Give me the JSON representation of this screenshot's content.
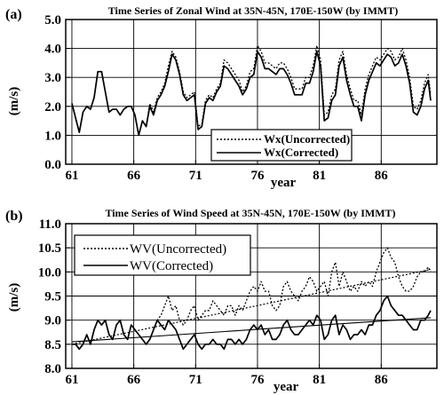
{
  "figure": {
    "panel_a_label": "(a)",
    "panel_b_label": "(b)"
  },
  "chart_data": [
    {
      "type": "line",
      "title": "Time Series of Zonal Wind at 35N-45N, 170E-150W (by IMMT)",
      "xlabel": "year",
      "ylabel": "(m/s)",
      "xlim": [
        60.5,
        90.5
      ],
      "ylim": [
        0.0,
        5.0
      ],
      "x_ticks": [
        61,
        66,
        71,
        76,
        81,
        86
      ],
      "y_ticks": [
        0.0,
        1.0,
        2.0,
        3.0,
        4.0,
        5.0
      ],
      "y_tick_labels": [
        "0.0",
        "1.0",
        "2.0",
        "3.0",
        "4.0",
        "5.0"
      ],
      "grid": true,
      "legend_position": "bottom-right",
      "series": [
        {
          "name": "Wx(Uncorrected)",
          "style": "dotted",
          "x": [
            61.0,
            61.3,
            61.6,
            61.9,
            62.2,
            62.5,
            62.8,
            63.1,
            63.4,
            63.7,
            64.0,
            64.3,
            64.6,
            64.9,
            65.2,
            65.5,
            65.8,
            66.1,
            66.4,
            66.7,
            67.0,
            67.3,
            67.6,
            67.9,
            68.2,
            68.5,
            68.8,
            69.1,
            69.4,
            69.7,
            70.0,
            70.3,
            70.6,
            70.9,
            71.2,
            71.5,
            71.8,
            72.1,
            72.4,
            72.7,
            73.0,
            73.3,
            73.6,
            73.9,
            74.2,
            74.5,
            74.8,
            75.1,
            75.4,
            75.7,
            76.0,
            76.3,
            76.6,
            76.9,
            77.2,
            77.5,
            77.8,
            78.1,
            78.4,
            78.7,
            79.0,
            79.3,
            79.6,
            79.9,
            80.2,
            80.5,
            80.8,
            81.1,
            81.4,
            81.7,
            82.0,
            82.3,
            82.6,
            82.9,
            83.2,
            83.5,
            83.8,
            84.1,
            84.4,
            84.7,
            85.0,
            85.3,
            85.6,
            85.9,
            86.2,
            86.5,
            86.8,
            87.1,
            87.4,
            87.7,
            88.0,
            88.3,
            88.6,
            88.9,
            89.2,
            89.5,
            89.8,
            90.0
          ],
          "y": [
            2.1,
            1.6,
            1.1,
            1.8,
            2.0,
            1.9,
            2.3,
            3.2,
            3.2,
            2.5,
            1.8,
            1.9,
            1.9,
            1.7,
            1.9,
            2.0,
            2.0,
            1.7,
            1.0,
            1.5,
            1.3,
            2.1,
            1.8,
            2.3,
            2.5,
            2.8,
            3.4,
            3.9,
            3.7,
            3.2,
            2.5,
            2.3,
            2.4,
            2.5,
            1.3,
            1.4,
            2.2,
            2.4,
            2.3,
            2.6,
            2.8,
            3.6,
            3.5,
            3.3,
            3.1,
            2.9,
            2.5,
            2.7,
            3.2,
            3.3,
            4.1,
            3.9,
            3.5,
            3.5,
            3.4,
            3.3,
            3.5,
            3.5,
            3.3,
            3.0,
            2.6,
            2.6,
            2.6,
            3.0,
            3.0,
            3.4,
            4.1,
            3.6,
            1.7,
            1.8,
            2.4,
            2.6,
            3.6,
            3.9,
            3.1,
            2.6,
            2.2,
            2.2,
            1.7,
            2.6,
            3.1,
            3.4,
            3.7,
            3.6,
            3.8,
            4.0,
            3.9,
            3.6,
            3.7,
            4.0,
            3.6,
            3.0,
            2.0,
            1.9,
            2.2,
            2.8,
            3.1,
            2.4
          ]
        },
        {
          "name": "Wx(Corrected)",
          "style": "solid",
          "x": [
            61.0,
            61.3,
            61.6,
            61.9,
            62.2,
            62.5,
            62.8,
            63.1,
            63.4,
            63.7,
            64.0,
            64.3,
            64.6,
            64.9,
            65.2,
            65.5,
            65.8,
            66.1,
            66.4,
            66.7,
            67.0,
            67.3,
            67.6,
            67.9,
            68.2,
            68.5,
            68.8,
            69.1,
            69.4,
            69.7,
            70.0,
            70.3,
            70.6,
            70.9,
            71.2,
            71.5,
            71.8,
            72.1,
            72.4,
            72.7,
            73.0,
            73.3,
            73.6,
            73.9,
            74.2,
            74.5,
            74.8,
            75.1,
            75.4,
            75.7,
            76.0,
            76.3,
            76.6,
            76.9,
            77.2,
            77.5,
            77.8,
            78.1,
            78.4,
            78.7,
            79.0,
            79.3,
            79.6,
            79.9,
            80.2,
            80.5,
            80.8,
            81.1,
            81.4,
            81.7,
            82.0,
            82.3,
            82.6,
            82.9,
            83.2,
            83.5,
            83.8,
            84.1,
            84.4,
            84.7,
            85.0,
            85.3,
            85.6,
            85.9,
            86.2,
            86.5,
            86.8,
            87.1,
            87.4,
            87.7,
            88.0,
            88.3,
            88.6,
            88.9,
            89.2,
            89.5,
            89.8,
            90.0
          ],
          "y": [
            2.1,
            1.6,
            1.1,
            1.8,
            2.0,
            1.9,
            2.3,
            3.2,
            3.2,
            2.5,
            1.8,
            1.9,
            1.9,
            1.7,
            1.9,
            2.0,
            2.0,
            1.7,
            1.0,
            1.5,
            1.3,
            2.0,
            1.7,
            2.2,
            2.4,
            2.7,
            3.2,
            3.8,
            3.6,
            3.1,
            2.4,
            2.2,
            2.3,
            2.4,
            1.2,
            1.3,
            2.1,
            2.3,
            2.2,
            2.5,
            2.7,
            3.4,
            3.3,
            3.1,
            2.9,
            2.7,
            2.4,
            2.6,
            3.0,
            3.1,
            3.9,
            3.7,
            3.3,
            3.3,
            3.2,
            3.1,
            3.3,
            3.3,
            3.1,
            2.8,
            2.4,
            2.4,
            2.4,
            2.8,
            2.8,
            3.2,
            3.9,
            3.4,
            1.5,
            1.6,
            2.2,
            2.4,
            3.4,
            3.7,
            2.9,
            2.4,
            2.0,
            2.0,
            1.5,
            2.4,
            2.9,
            3.2,
            3.5,
            3.4,
            3.6,
            3.8,
            3.7,
            3.4,
            3.5,
            3.8,
            3.4,
            2.8,
            1.8,
            1.7,
            2.0,
            2.6,
            2.9,
            2.2
          ]
        }
      ]
    },
    {
      "type": "line",
      "title": "Time Series of Wind Speed at 35N-45N, 170E-150W (by IMMT)",
      "xlabel": "year",
      "ylabel": "(m/s)",
      "xlim": [
        60.5,
        90.5
      ],
      "ylim": [
        8.0,
        11.0
      ],
      "x_ticks": [
        61,
        66,
        71,
        76,
        81,
        86
      ],
      "y_ticks": [
        8.0,
        8.5,
        9.0,
        9.5,
        10.0,
        10.5,
        11.0
      ],
      "y_tick_labels": [
        "8.0",
        "8.5",
        "9.0",
        "9.5",
        "10.0",
        "10.5",
        "11.0"
      ],
      "grid": true,
      "legend_position": "top-left",
      "series": [
        {
          "name": "WV(Uncorrected)",
          "style": "dotted",
          "x": [
            61.0,
            61.3,
            61.6,
            61.9,
            62.2,
            62.5,
            62.8,
            63.1,
            63.4,
            63.7,
            64.0,
            64.3,
            64.6,
            64.9,
            65.2,
            65.5,
            65.8,
            66.1,
            66.4,
            66.7,
            67.0,
            67.3,
            67.6,
            67.9,
            68.2,
            68.5,
            68.8,
            69.1,
            69.4,
            69.7,
            70.0,
            70.3,
            70.6,
            70.9,
            71.2,
            71.5,
            71.8,
            72.1,
            72.4,
            72.7,
            73.0,
            73.3,
            73.6,
            73.9,
            74.2,
            74.5,
            74.8,
            75.1,
            75.4,
            75.7,
            76.0,
            76.3,
            76.6,
            76.9,
            77.2,
            77.5,
            77.8,
            78.1,
            78.4,
            78.7,
            79.0,
            79.3,
            79.6,
            79.9,
            80.2,
            80.5,
            80.8,
            81.1,
            81.4,
            81.7,
            82.0,
            82.3,
            82.6,
            82.9,
            83.2,
            83.5,
            83.8,
            84.1,
            84.4,
            84.7,
            85.0,
            85.3,
            85.6,
            85.9,
            86.2,
            86.5,
            86.8,
            87.1,
            87.4,
            87.7,
            88.0,
            88.3,
            88.6,
            88.9,
            89.2,
            89.5,
            89.8,
            90.0
          ],
          "y": [
            8.5,
            8.5,
            8.4,
            8.5,
            8.7,
            8.5,
            8.8,
            9.0,
            8.9,
            9.0,
            8.7,
            8.6,
            8.9,
            9.0,
            8.7,
            8.6,
            8.9,
            8.8,
            8.7,
            8.6,
            8.5,
            8.6,
            8.8,
            9.0,
            9.1,
            9.3,
            9.5,
            9.2,
            9.3,
            9.0,
            8.9,
            9.0,
            9.2,
            9.3,
            9.0,
            9.1,
            9.2,
            9.2,
            9.4,
            9.3,
            9.2,
            9.1,
            9.3,
            9.3,
            9.1,
            9.3,
            9.2,
            9.4,
            9.6,
            9.7,
            9.6,
            9.8,
            9.6,
            9.6,
            9.3,
            9.2,
            9.3,
            9.7,
            9.8,
            9.6,
            9.5,
            9.4,
            9.6,
            9.7,
            9.9,
            9.8,
            9.6,
            9.7,
            9.8,
            9.5,
            10.0,
            10.2,
            9.7,
            10.0,
            9.8,
            9.6,
            9.7,
            9.6,
            9.8,
            9.7,
            9.8,
            9.7,
            10.0,
            10.2,
            10.4,
            10.5,
            10.3,
            10.2,
            9.9,
            9.7,
            9.6,
            9.6,
            9.7,
            9.9,
            10.0,
            10.0,
            10.1,
            10.0
          ]
        },
        {
          "name": "WV(Corrected)",
          "style": "solid",
          "x": [
            61.0,
            61.3,
            61.6,
            61.9,
            62.2,
            62.5,
            62.8,
            63.1,
            63.4,
            63.7,
            64.0,
            64.3,
            64.6,
            64.9,
            65.2,
            65.5,
            65.8,
            66.1,
            66.4,
            66.7,
            67.0,
            67.3,
            67.6,
            67.9,
            68.2,
            68.5,
            68.8,
            69.1,
            69.4,
            69.7,
            70.0,
            70.3,
            70.6,
            70.9,
            71.2,
            71.5,
            71.8,
            72.1,
            72.4,
            72.7,
            73.0,
            73.3,
            73.6,
            73.9,
            74.2,
            74.5,
            74.8,
            75.1,
            75.4,
            75.7,
            76.0,
            76.3,
            76.6,
            76.9,
            77.2,
            77.5,
            77.8,
            78.1,
            78.4,
            78.7,
            79.0,
            79.3,
            79.6,
            79.9,
            80.2,
            80.5,
            80.8,
            81.1,
            81.4,
            81.7,
            82.0,
            82.3,
            82.6,
            82.9,
            83.2,
            83.5,
            83.8,
            84.1,
            84.4,
            84.7,
            85.0,
            85.3,
            85.6,
            85.9,
            86.2,
            86.5,
            86.8,
            87.1,
            87.4,
            87.7,
            88.0,
            88.3,
            88.6,
            88.9,
            89.2,
            89.5,
            89.8,
            90.0
          ],
          "y": [
            8.5,
            8.5,
            8.4,
            8.5,
            8.7,
            8.5,
            8.8,
            9.0,
            8.9,
            9.0,
            8.7,
            8.6,
            8.9,
            9.0,
            8.7,
            8.6,
            8.9,
            8.8,
            8.7,
            8.6,
            8.5,
            8.6,
            8.8,
            9.0,
            8.9,
            8.8,
            9.0,
            8.9,
            8.8,
            8.6,
            8.4,
            8.5,
            8.6,
            8.7,
            8.5,
            8.4,
            8.5,
            8.5,
            8.6,
            8.5,
            8.5,
            8.4,
            8.6,
            8.6,
            8.5,
            8.6,
            8.5,
            8.6,
            8.8,
            8.9,
            8.8,
            8.9,
            8.7,
            8.8,
            8.6,
            8.6,
            8.7,
            8.9,
            9.0,
            8.8,
            8.7,
            8.7,
            8.8,
            8.9,
            9.0,
            8.9,
            9.1,
            9.0,
            8.6,
            8.7,
            9.0,
            9.1,
            8.7,
            8.9,
            8.8,
            8.6,
            8.7,
            8.7,
            8.8,
            8.7,
            8.9,
            8.9,
            9.1,
            9.2,
            9.4,
            9.5,
            9.3,
            9.2,
            9.1,
            9.1,
            9.0,
            8.9,
            8.8,
            8.8,
            9.0,
            9.0,
            9.1,
            9.2
          ]
        },
        {
          "name": "",
          "style": "trend-dotted",
          "x": [
            61,
            90
          ],
          "y": [
            8.5,
            10.05
          ]
        },
        {
          "name": "",
          "style": "trend-solid",
          "x": [
            61,
            90
          ],
          "y": [
            8.55,
            9.05
          ]
        }
      ]
    }
  ]
}
